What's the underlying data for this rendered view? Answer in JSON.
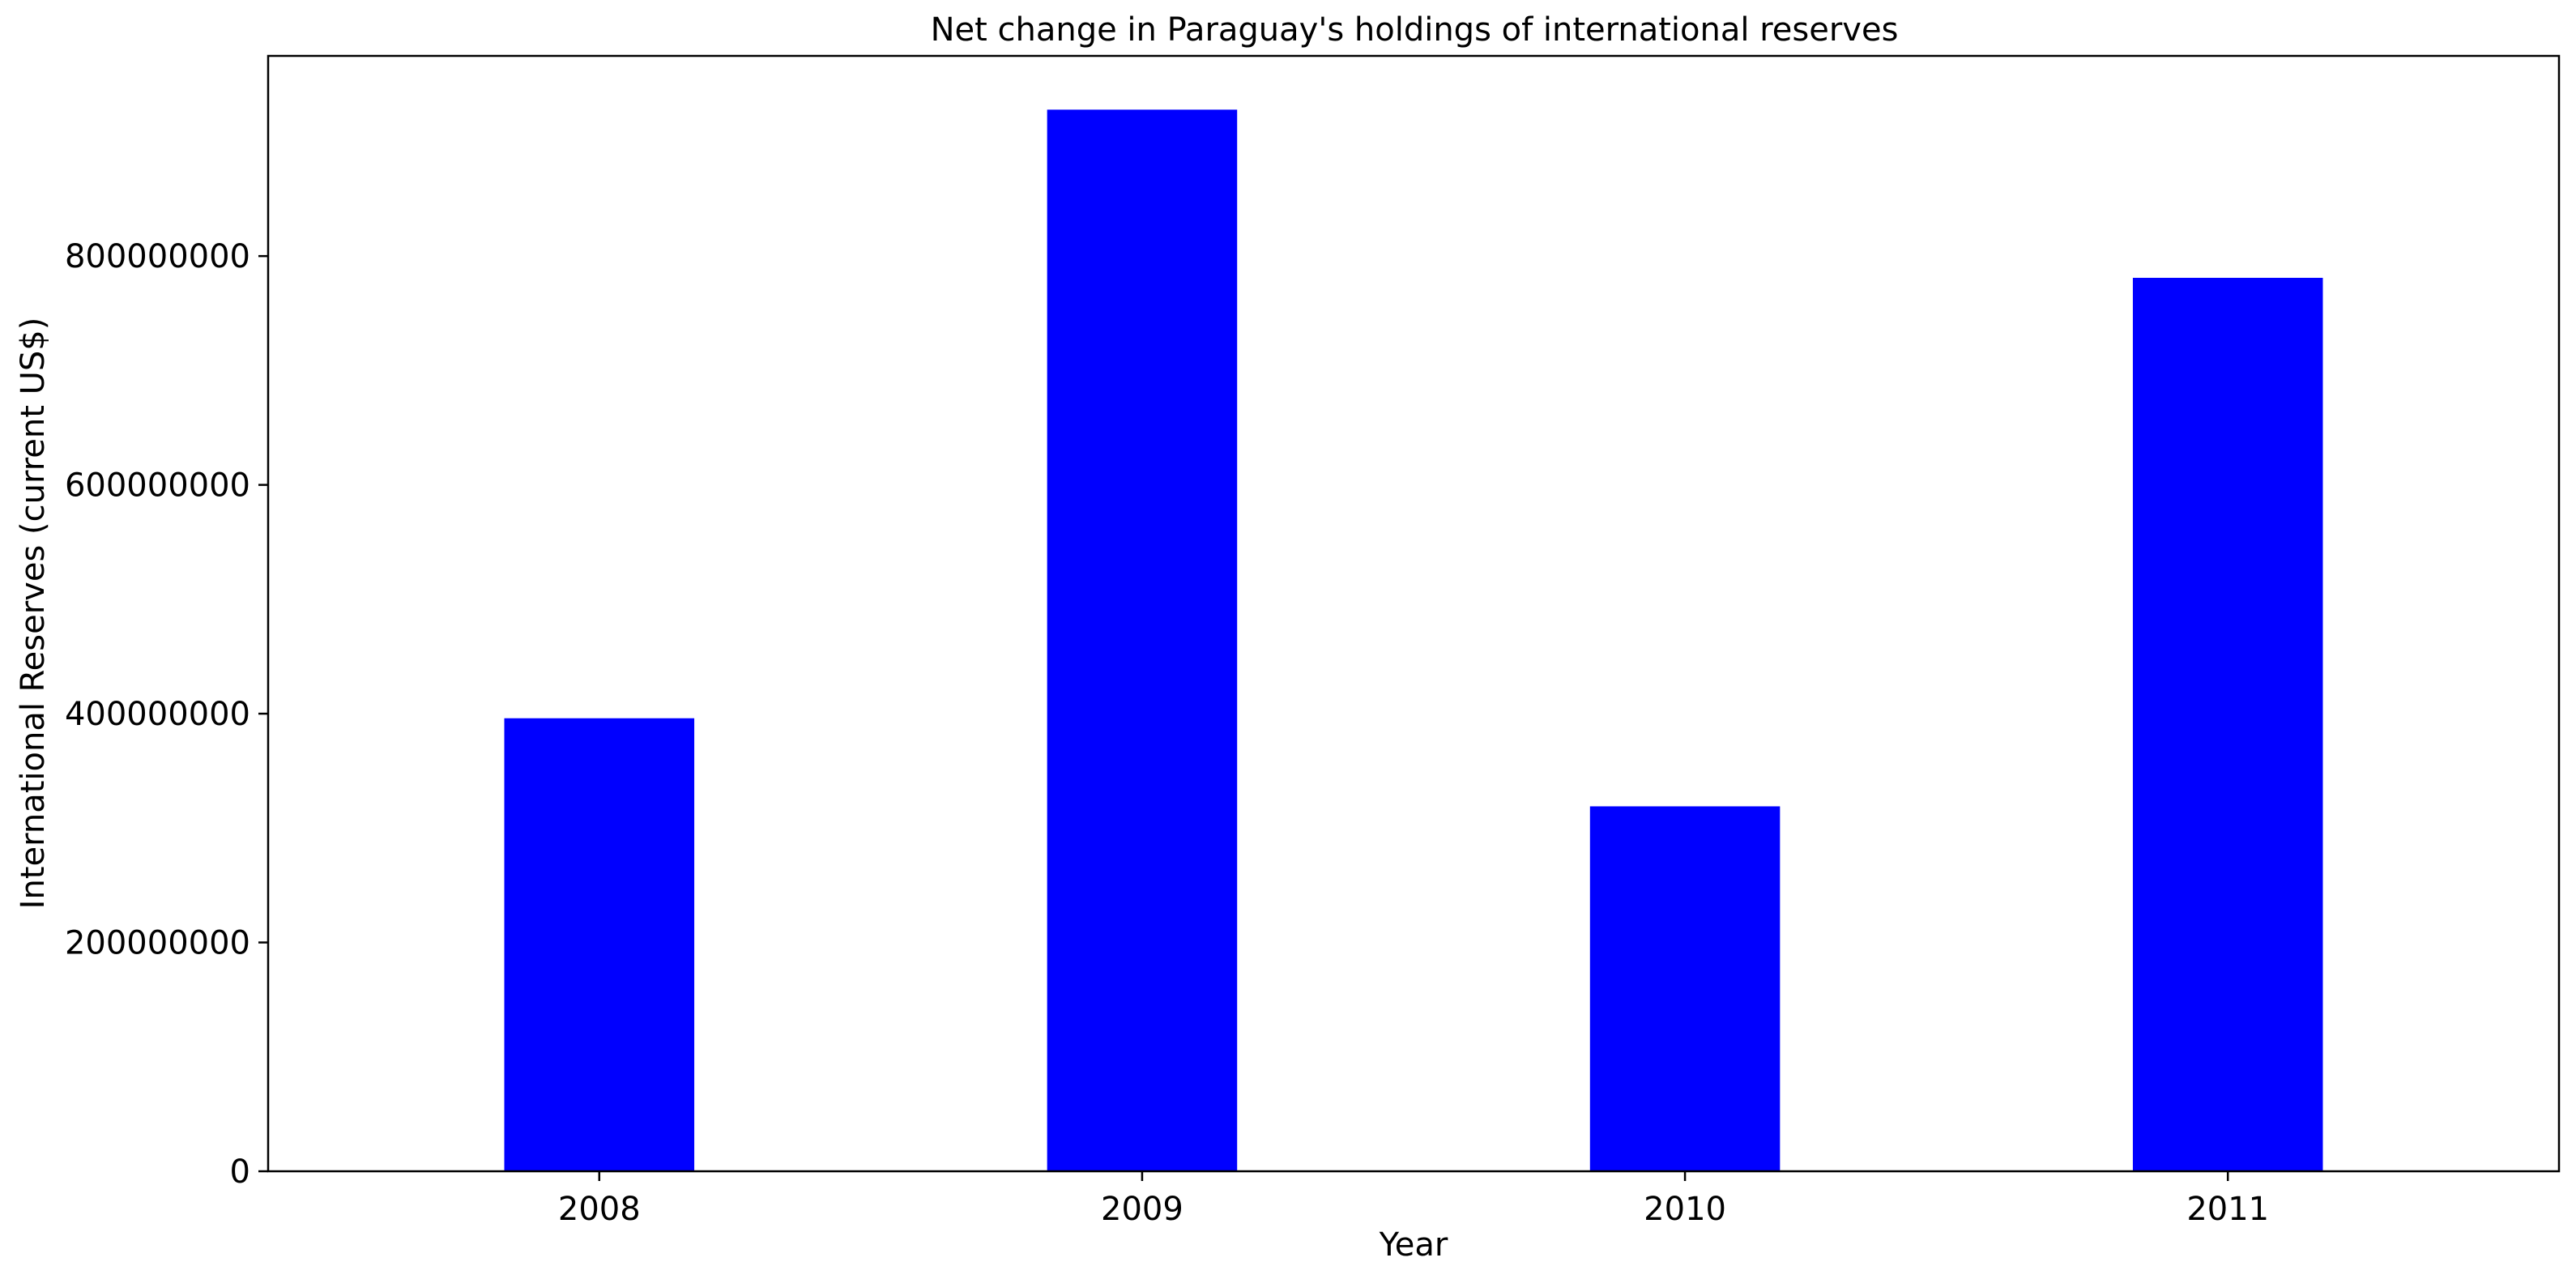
{
  "chart_data": {
    "type": "bar",
    "title": "Net change in Paraguay's holdings of international reserves",
    "xlabel": "Year",
    "ylabel": "International Reserves (current US$)",
    "categories": [
      "2008",
      "2009",
      "2010",
      "2011"
    ],
    "values": [
      396000000,
      928000000,
      319000000,
      781000000
    ],
    "ylim": [
      0,
      975000000
    ],
    "yticks": [
      0,
      200000000,
      400000000,
      600000000,
      800000000
    ],
    "ytick_labels": [
      "0",
      "200000000",
      "400000000",
      "600000000",
      "800000000"
    ],
    "bar_color": "#0000ff",
    "grid": false,
    "legend": "none"
  }
}
